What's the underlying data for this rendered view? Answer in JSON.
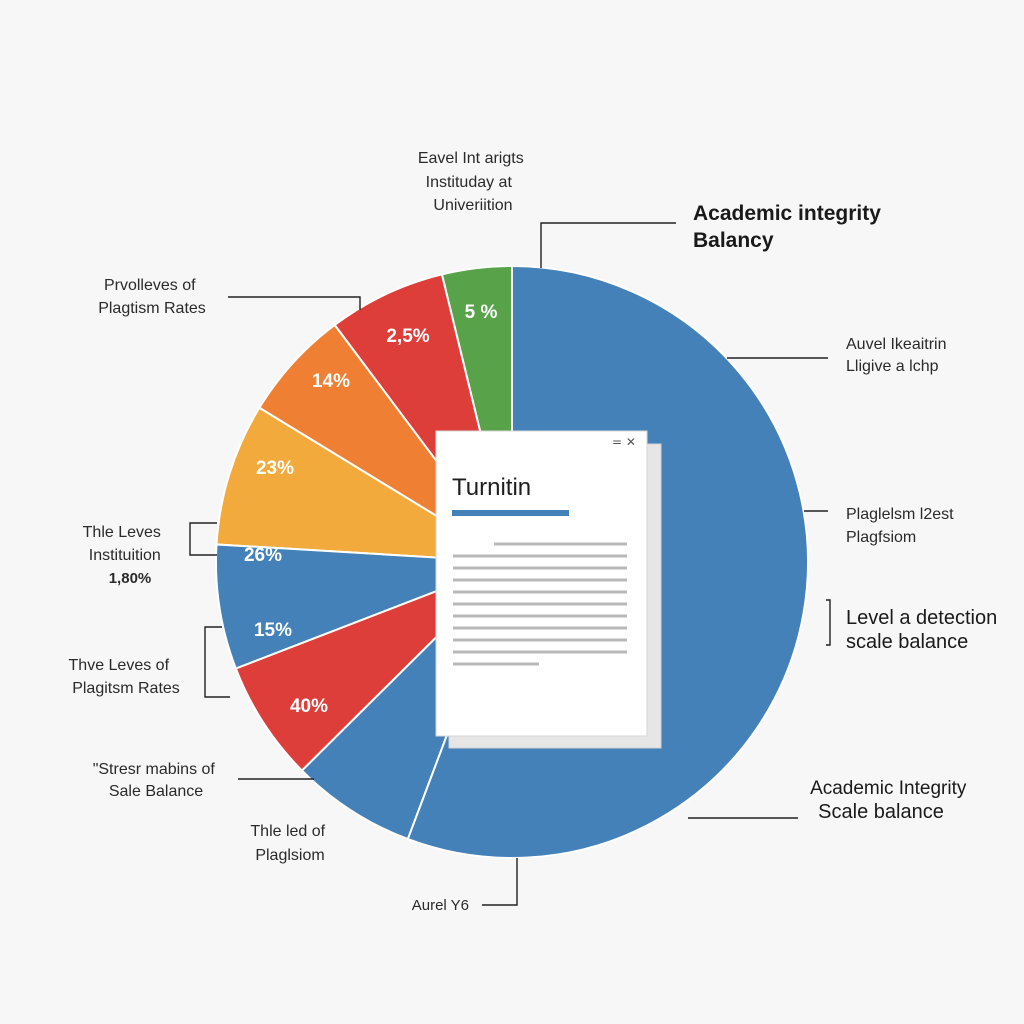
{
  "colors": {
    "blue": "#4481b8",
    "green": "#58a34a",
    "red": "#de3e3a",
    "orange": "#ee7f33",
    "yellow": "#f2aa3c",
    "accent_bar": "#4481b8"
  },
  "chart_data": {
    "type": "pie",
    "title": "Academic integrity Balancy",
    "slices": [
      {
        "label": "5 %",
        "color": "#58a34a"
      },
      {
        "label": "2,5%",
        "color": "#de3e3a"
      },
      {
        "label": "14%",
        "color": "#ee7f33"
      },
      {
        "label": "23%",
        "color": "#f2aa3c"
      },
      {
        "label": "26%",
        "color": "#4481b8"
      },
      {
        "label": "15%",
        "color": "#de3e3a"
      },
      {
        "label": "40%",
        "color": "#4481b8"
      },
      {
        "label": "",
        "color": "#4481b8"
      }
    ],
    "slice_degrees": [
      13.7,
      23.1,
      21.8,
      28.0,
      24.5,
      23.7,
      24.6,
      200.6
    ],
    "annotations": {
      "top": [
        "Eavel Int arigts",
        "Instituday at",
        "Univeriition"
      ],
      "title": [
        "Academic integrity",
        "Balancy"
      ],
      "right_1": [
        "Auvel Ikeaitrin",
        "Lligive a lchp"
      ],
      "right_2": [
        "Plaglelsm l2est",
        "Plagfsiom"
      ],
      "right_3": [
        "Level a detection",
        "scale balance"
      ],
      "right_4": [
        "Academic Integrity",
        "Scale balance"
      ],
      "left_1": [
        "Prvolleves of",
        "Plagtism Rates"
      ],
      "left_2": [
        "Thle Leves",
        "Instituition",
        "1,80%"
      ],
      "left_3": [
        "Thve Leves of",
        "Plagitsm Rates"
      ],
      "left_4": [
        "\"Stresr mabins of",
        "Sale Balance"
      ],
      "left_5": [
        "Thle led of",
        "Plaglsiom"
      ],
      "bottom": [
        "Aurel Y6"
      ]
    }
  },
  "document": {
    "title": "Turnitin",
    "controls": "= ✕"
  }
}
